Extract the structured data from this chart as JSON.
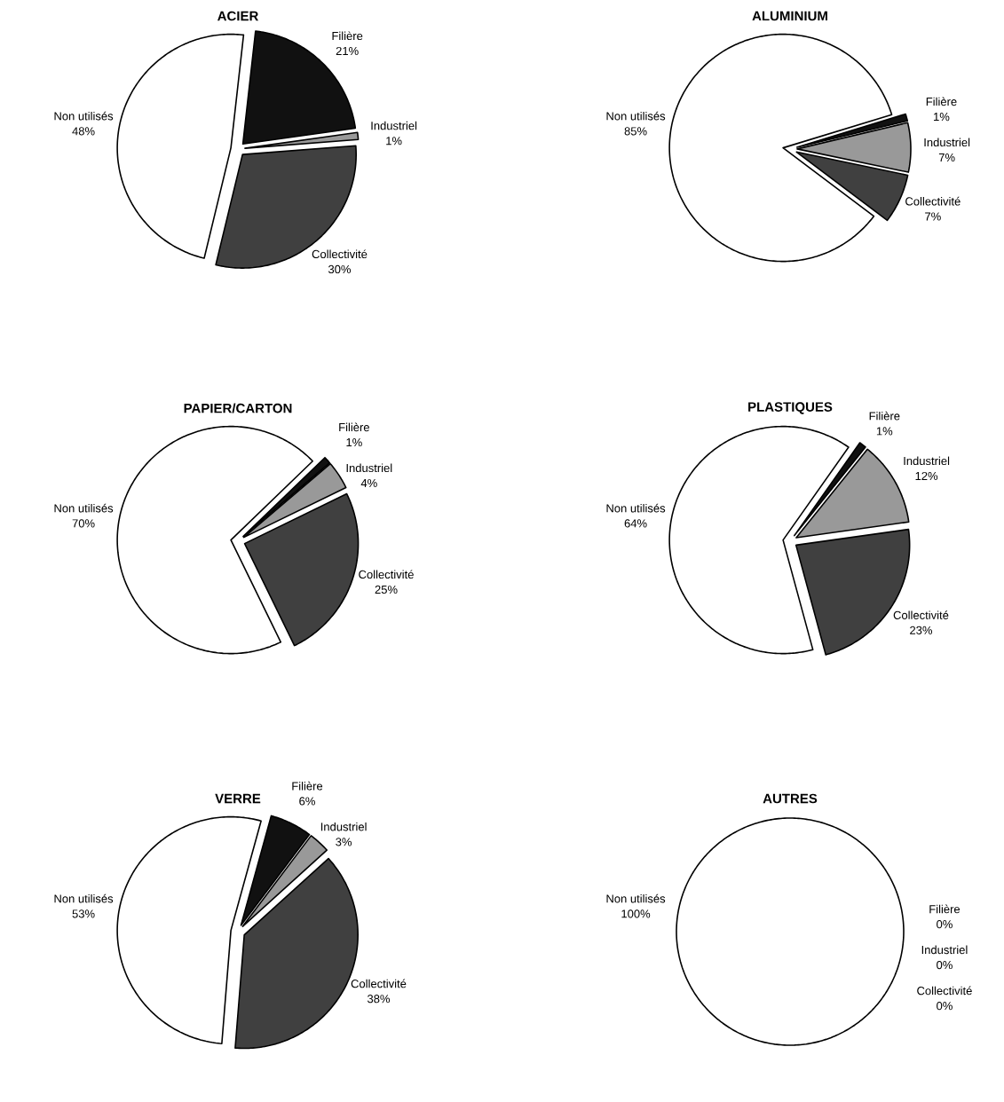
{
  "chart_data": [
    {
      "type": "pie",
      "title": "ACIER",
      "categories": [
        "Filière",
        "Industriel",
        "Collectivité",
        "Non utilisés"
      ],
      "values": [
        21,
        1,
        30,
        48
      ],
      "value_labels": [
        "21%",
        "1%",
        "30%",
        "48%"
      ],
      "colors": [
        "#111111",
        "#999999",
        "#404040",
        "#ffffff"
      ]
    },
    {
      "type": "pie",
      "title": "ALUMINIUM",
      "categories": [
        "Filière",
        "Industriel",
        "Collectivité",
        "Non utilisés"
      ],
      "values": [
        1,
        7,
        7,
        85
      ],
      "value_labels": [
        "1%",
        "7%",
        "7%",
        "85%"
      ],
      "colors": [
        "#111111",
        "#999999",
        "#404040",
        "#ffffff"
      ]
    },
    {
      "type": "pie",
      "title": "PAPIER/CARTON",
      "categories": [
        "Filière",
        "Industriel",
        "Collectivité",
        "Non utilisés"
      ],
      "values": [
        1,
        4,
        25,
        70
      ],
      "value_labels": [
        "1%",
        "4%",
        "25%",
        "70%"
      ],
      "colors": [
        "#111111",
        "#999999",
        "#404040",
        "#ffffff"
      ]
    },
    {
      "type": "pie",
      "title": "PLASTIQUES",
      "categories": [
        "Filière",
        "Industriel",
        "Collectivité",
        "Non utilisés"
      ],
      "values": [
        1,
        12,
        23,
        64
      ],
      "value_labels": [
        "1%",
        "12%",
        "23%",
        "64%"
      ],
      "colors": [
        "#111111",
        "#999999",
        "#404040",
        "#ffffff"
      ]
    },
    {
      "type": "pie",
      "title": "VERRE",
      "categories": [
        "Filière",
        "Industriel",
        "Collectivité",
        "Non utilisés"
      ],
      "values": [
        6,
        3,
        38,
        53
      ],
      "value_labels": [
        "6%",
        "3%",
        "38%",
        "53%"
      ],
      "colors": [
        "#111111",
        "#999999",
        "#404040",
        "#ffffff"
      ]
    },
    {
      "type": "pie",
      "title": "AUTRES",
      "categories": [
        "Filière",
        "Industriel",
        "Collectivité",
        "Non utilisés"
      ],
      "values": [
        0,
        0,
        0,
        100
      ],
      "value_labels": [
        "0%",
        "0%",
        "0%",
        "100%"
      ],
      "colors": [
        "#111111",
        "#999999",
        "#404040",
        "#ffffff"
      ]
    }
  ]
}
